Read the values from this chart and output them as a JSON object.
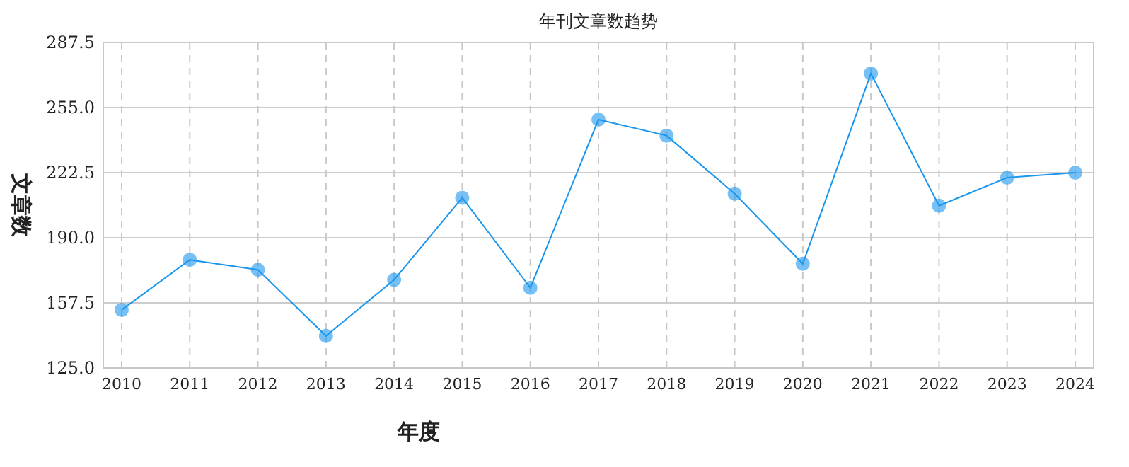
{
  "chart_data": {
    "type": "line",
    "title": "年刊文章数趋势",
    "xlabel": "年度",
    "ylabel": "文章数",
    "categories": [
      "2010",
      "2011",
      "2012",
      "2013",
      "2014",
      "2015",
      "2016",
      "2017",
      "2018",
      "2019",
      "2020",
      "2021",
      "2022",
      "2023",
      "2024"
    ],
    "series": [
      {
        "color": "#1a96ee",
        "values": [
          154,
          179,
          174,
          141,
          169,
          210,
          165,
          249,
          241,
          212,
          177,
          272,
          206,
          220,
          222.5
        ]
      }
    ],
    "ylim": [
      125,
      287.5
    ],
    "yticks": [
      {
        "value": 125,
        "label": "125.0"
      },
      157.5,
      {
        "value": 190,
        "label": "190.0"
      },
      222.5,
      {
        "value": 255,
        "label": "255.0"
      },
      287.5
    ],
    "grid": true,
    "marker": "circle",
    "line_style": "solid"
  }
}
